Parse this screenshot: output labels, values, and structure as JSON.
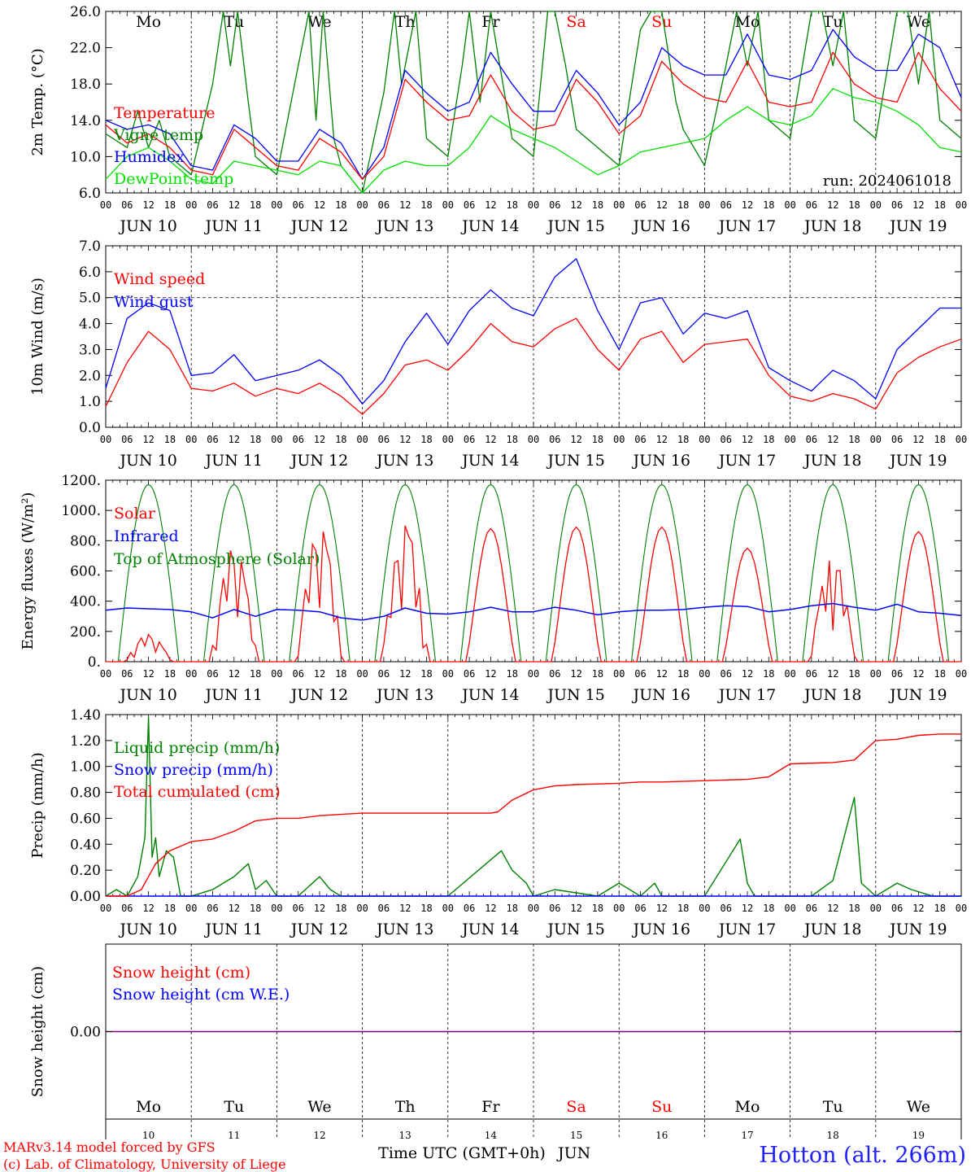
{
  "colors": {
    "temperature": "#ff0000",
    "vigne": "#008000",
    "humidex": "#0000ff",
    "dewpoint": "#00e000",
    "toa": "#008000",
    "station": "#2020ff",
    "weekend": "#ff0000",
    "purple": "#7f007f",
    "axis": "#000000"
  },
  "days": [
    "Mo",
    "Tu",
    "We",
    "Th",
    "Fr",
    "Sa",
    "Su",
    "Mo",
    "Tu",
    "We"
  ],
  "weekend_days": [
    "Sa",
    "Su"
  ],
  "date_labels": [
    "JUN 10",
    "JUN 11",
    "JUN 12",
    "JUN 13",
    "JUN 14",
    "JUN 15",
    "JUN 16",
    "JUN 17",
    "JUN 18",
    "JUN 19"
  ],
  "hour_ticks": [
    "00",
    "06",
    "12",
    "18"
  ],
  "bottom_day_numbers": [
    "10",
    "11",
    "12",
    "13",
    "14",
    "15",
    "16",
    "17",
    "18",
    "19"
  ],
  "xaxis_title": "Time UTC (GMT+0h)",
  "xaxis_month": "JUN",
  "footer": {
    "line1": "MARv3.14 model forced by GFS",
    "line2": "(c) Lab. of Climatology, University of Liege",
    "station": "Hotton (alt. 266m)"
  },
  "chart_data": [
    {
      "type": "line",
      "ylabel": "2m Temp. (°C)",
      "ylim": [
        6.0,
        26.0
      ],
      "yticks": [
        "6.0",
        "10.0",
        "14.0",
        "18.0",
        "22.0",
        "26.0"
      ],
      "run_label": "run: 2024061018",
      "x_unit": "hours since JUN 10 00 UTC",
      "series": [
        {
          "name": "Temperature",
          "color": "#ff0000",
          "x": [
            0,
            6,
            12,
            18,
            24,
            30,
            36,
            42,
            48,
            54,
            60,
            66,
            72,
            78,
            84,
            90,
            96,
            102,
            108,
            114,
            120,
            126,
            132,
            138,
            144,
            150,
            156,
            162,
            168,
            174,
            180,
            186,
            192,
            198,
            204,
            210,
            216,
            222,
            228,
            234,
            240
          ],
          "values": [
            13.5,
            11.5,
            12.5,
            11.0,
            8.5,
            8.0,
            13.0,
            11.0,
            9.0,
            8.5,
            12.0,
            10.5,
            7.5,
            10.0,
            18.5,
            16.0,
            14.0,
            14.5,
            19.0,
            15.0,
            13.0,
            13.5,
            18.5,
            16.0,
            12.5,
            14.5,
            20.5,
            18.0,
            16.5,
            16.0,
            20.5,
            16.0,
            15.5,
            16.0,
            21.5,
            18.0,
            16.5,
            16.0,
            21.5,
            17.5,
            15.0
          ]
        },
        {
          "name": "Vigne temp",
          "color": "#008000",
          "x": [
            0,
            6,
            9,
            12,
            15,
            18,
            24,
            30,
            33,
            35,
            37,
            40,
            42,
            48,
            54,
            57,
            59,
            61,
            64,
            66,
            72,
            78,
            81,
            83,
            87,
            90,
            96,
            100,
            102,
            105,
            108,
            114,
            120,
            124,
            126,
            129,
            132,
            138,
            144,
            150,
            153,
            156,
            160,
            162,
            168,
            174,
            177,
            180,
            183,
            186,
            192,
            198,
            201,
            204,
            207,
            210,
            216,
            222,
            225,
            228,
            231,
            234,
            240
          ],
          "values": [
            12.5,
            11.0,
            15.0,
            11.0,
            14.0,
            10.0,
            8.0,
            18.0,
            27.0,
            20.0,
            27.0,
            16.0,
            10.0,
            8.0,
            20.0,
            27.0,
            14.0,
            27.0,
            12.0,
            9.0,
            6.0,
            17.0,
            27.0,
            18.0,
            27.0,
            12.0,
            10.0,
            20.0,
            27.0,
            16.0,
            27.0,
            12.0,
            10.0,
            27.0,
            27.0,
            20.0,
            13.0,
            11.0,
            9.0,
            24.0,
            27.0,
            27.0,
            16.0,
            13.0,
            9.0,
            20.0,
            27.0,
            20.0,
            27.0,
            14.0,
            12.0,
            27.0,
            27.0,
            20.0,
            27.0,
            14.0,
            12.0,
            27.0,
            27.0,
            18.0,
            27.0,
            14.0,
            12.0
          ]
        },
        {
          "name": "Humidex",
          "color": "#0000ff",
          "x": [
            0,
            6,
            12,
            18,
            24,
            30,
            36,
            42,
            48,
            54,
            60,
            66,
            72,
            78,
            84,
            90,
            96,
            102,
            108,
            114,
            120,
            126,
            132,
            138,
            144,
            150,
            156,
            162,
            168,
            174,
            180,
            186,
            192,
            198,
            204,
            210,
            216,
            222,
            228,
            234,
            240
          ],
          "values": [
            14.0,
            13.0,
            13.5,
            12.5,
            9.0,
            8.5,
            13.5,
            12.0,
            9.5,
            9.5,
            13.0,
            11.5,
            7.5,
            11.0,
            19.5,
            17.0,
            15.0,
            16.0,
            21.5,
            18.0,
            15.0,
            15.0,
            19.5,
            17.0,
            13.5,
            16.0,
            22.0,
            20.0,
            19.0,
            19.0,
            23.5,
            19.0,
            18.5,
            19.5,
            24.0,
            21.0,
            19.5,
            19.5,
            23.5,
            22.0,
            16.5
          ]
        },
        {
          "name": "DewPoint temp",
          "color": "#00e000",
          "x": [
            0,
            6,
            12,
            18,
            24,
            30,
            36,
            42,
            48,
            54,
            60,
            66,
            72,
            78,
            84,
            90,
            96,
            102,
            108,
            114,
            120,
            126,
            132,
            138,
            144,
            150,
            156,
            162,
            168,
            174,
            180,
            186,
            192,
            198,
            204,
            210,
            216,
            222,
            228,
            234,
            240
          ],
          "values": [
            7.5,
            10.0,
            11.0,
            9.5,
            7.5,
            7.0,
            9.5,
            9.0,
            8.5,
            8.0,
            9.5,
            9.0,
            6.0,
            8.5,
            9.5,
            9.0,
            9.0,
            11.0,
            14.5,
            13.0,
            12.0,
            11.0,
            9.5,
            8.0,
            9.0,
            10.5,
            11.0,
            11.5,
            12.0,
            14.0,
            15.5,
            14.0,
            13.5,
            14.5,
            17.5,
            16.5,
            16.0,
            15.0,
            13.5,
            11.0,
            10.5
          ]
        }
      ]
    },
    {
      "type": "line",
      "ylabel": "10m Wind (m/s)",
      "ylim": [
        0.0,
        7.0
      ],
      "yticks": [
        "0.0",
        "1.0",
        "2.0",
        "3.0",
        "4.0",
        "5.0",
        "6.0",
        "7.0"
      ],
      "reference_line": 5.0,
      "x_unit": "hours since JUN 10 00 UTC",
      "series": [
        {
          "name": "Wind speed",
          "color": "#ff0000",
          "x": [
            0,
            6,
            12,
            18,
            24,
            30,
            36,
            42,
            48,
            54,
            60,
            66,
            72,
            78,
            84,
            90,
            96,
            102,
            108,
            114,
            120,
            126,
            132,
            138,
            144,
            150,
            156,
            162,
            168,
            174,
            180,
            186,
            192,
            198,
            204,
            210,
            216,
            222,
            228,
            234,
            240
          ],
          "values": [
            0.8,
            2.5,
            3.7,
            3.0,
            1.5,
            1.4,
            1.7,
            1.2,
            1.5,
            1.3,
            1.7,
            1.2,
            0.5,
            1.3,
            2.4,
            2.6,
            2.2,
            3.0,
            4.0,
            3.3,
            3.1,
            3.8,
            4.2,
            3.0,
            2.2,
            3.4,
            3.7,
            2.5,
            3.2,
            3.3,
            3.4,
            2.0,
            1.2,
            1.0,
            1.3,
            1.1,
            0.7,
            2.1,
            2.7,
            3.1,
            3.4
          ]
        },
        {
          "name": "Wind gust",
          "color": "#0000ff",
          "x": [
            0,
            6,
            12,
            18,
            24,
            30,
            36,
            42,
            48,
            54,
            60,
            66,
            72,
            78,
            84,
            90,
            96,
            102,
            108,
            114,
            120,
            126,
            132,
            138,
            144,
            150,
            156,
            162,
            168,
            174,
            180,
            186,
            192,
            198,
            204,
            210,
            216,
            222,
            228,
            234,
            240
          ],
          "values": [
            1.5,
            4.2,
            4.8,
            4.5,
            2.0,
            2.1,
            2.8,
            1.8,
            2.0,
            2.2,
            2.6,
            2.0,
            0.9,
            1.8,
            3.3,
            4.4,
            3.2,
            4.5,
            5.3,
            4.6,
            4.3,
            5.8,
            6.5,
            4.5,
            3.0,
            4.8,
            5.0,
            3.6,
            4.4,
            4.2,
            4.5,
            2.3,
            1.8,
            1.4,
            2.2,
            1.8,
            1.1,
            3.0,
            3.8,
            4.6,
            4.6
          ]
        }
      ]
    },
    {
      "type": "line",
      "ylabel": "Energy fluxes (W/m²)",
      "ylim": [
        0,
        1200
      ],
      "yticks": [
        "0.",
        "200.",
        "400.",
        "600.",
        "800.",
        "1000.",
        "1200."
      ],
      "x_unit": "hours since JUN 10 00 UTC",
      "series": [
        {
          "name": "Solar",
          "color": "#ff0000",
          "daily_peak": [
            180,
            760,
            890,
            900,
            880,
            890,
            890,
            750,
            690,
            860
          ]
        },
        {
          "name": "Infrared",
          "color": "#0000ff",
          "x": [
            0,
            6,
            12,
            18,
            24,
            30,
            36,
            42,
            48,
            54,
            60,
            66,
            72,
            78,
            84,
            90,
            96,
            102,
            108,
            114,
            120,
            126,
            132,
            138,
            144,
            150,
            156,
            162,
            168,
            174,
            180,
            186,
            192,
            198,
            204,
            210,
            216,
            222,
            228,
            234,
            240
          ],
          "values": [
            340,
            355,
            350,
            345,
            330,
            290,
            345,
            300,
            345,
            340,
            330,
            290,
            275,
            300,
            355,
            320,
            315,
            330,
            360,
            330,
            330,
            360,
            340,
            310,
            330,
            340,
            340,
            345,
            360,
            370,
            365,
            330,
            345,
            370,
            385,
            360,
            340,
            380,
            330,
            320,
            305
          ]
        },
        {
          "name": "Top of Atmosphere (Solar)",
          "color": "#008000",
          "daily_peak": [
            1170,
            1170,
            1170,
            1170,
            1170,
            1170,
            1170,
            1170,
            1170,
            1170
          ]
        }
      ]
    },
    {
      "type": "line",
      "ylabel": "Precip (mm/h)",
      "ylim": [
        0.0,
        1.4
      ],
      "yticks": [
        "0.00",
        "0.20",
        "0.40",
        "0.60",
        "0.80",
        "1.00",
        "1.20",
        "1.40"
      ],
      "x_unit": "hours since JUN 10 00 UTC",
      "series": [
        {
          "name": "Liquid precip (mm/h)",
          "color": "#008000",
          "x": [
            0,
            3,
            6,
            9,
            11,
            12,
            13,
            14,
            15,
            17,
            19,
            21,
            24,
            30,
            36,
            40,
            42,
            45,
            48,
            54,
            60,
            63,
            66,
            72,
            96,
            111,
            114,
            118,
            120,
            126,
            138,
            144,
            150,
            154,
            156,
            168,
            178,
            180,
            182,
            186,
            198,
            204,
            210,
            212,
            216,
            222,
            226,
            232,
            240
          ],
          "values": [
            0,
            0.05,
            0,
            0.15,
            0.45,
            1.38,
            0.3,
            0.45,
            0.15,
            0.35,
            0.3,
            0,
            0,
            0.05,
            0.15,
            0.25,
            0.05,
            0.12,
            0,
            0,
            0.15,
            0.05,
            0,
            0,
            0,
            0.35,
            0.2,
            0.1,
            0,
            0.05,
            0,
            0.1,
            0,
            0.1,
            0,
            0,
            0.44,
            0.1,
            0,
            0,
            0,
            0.12,
            0.76,
            0.1,
            0,
            0.1,
            0.05,
            0,
            0
          ]
        },
        {
          "name": "Snow precip (mm/h)",
          "color": "#0000ff",
          "x": [
            0,
            240
          ],
          "values": [
            0,
            0
          ]
        },
        {
          "name": "Total cumulated (cm)",
          "color": "#ff0000",
          "x": [
            0,
            6,
            10,
            14,
            18,
            24,
            30,
            36,
            42,
            48,
            54,
            60,
            66,
            72,
            90,
            108,
            110,
            114,
            120,
            126,
            132,
            144,
            150,
            156,
            168,
            180,
            186,
            192,
            204,
            210,
            216,
            222,
            228,
            234,
            240
          ],
          "values": [
            0,
            0,
            0.05,
            0.25,
            0.35,
            0.42,
            0.44,
            0.5,
            0.58,
            0.6,
            0.6,
            0.62,
            0.63,
            0.64,
            0.64,
            0.64,
            0.65,
            0.74,
            0.82,
            0.85,
            0.86,
            0.87,
            0.88,
            0.88,
            0.89,
            0.9,
            0.92,
            1.02,
            1.03,
            1.05,
            1.2,
            1.21,
            1.24,
            1.25,
            1.25
          ]
        }
      ]
    },
    {
      "type": "line",
      "ylabel": "Snow height (cm)",
      "yticks": [
        "0.00"
      ],
      "x_unit": "hours since JUN 10 00 UTC",
      "series": [
        {
          "name": "Snow height (cm)",
          "color": "#ff0000",
          "x": [
            0,
            240
          ],
          "values": [
            0,
            0
          ]
        },
        {
          "name": "Snow height (cm W.E.)",
          "color": "#0000ff",
          "x": [
            0,
            240
          ],
          "values": [
            0,
            0
          ]
        }
      ]
    }
  ]
}
